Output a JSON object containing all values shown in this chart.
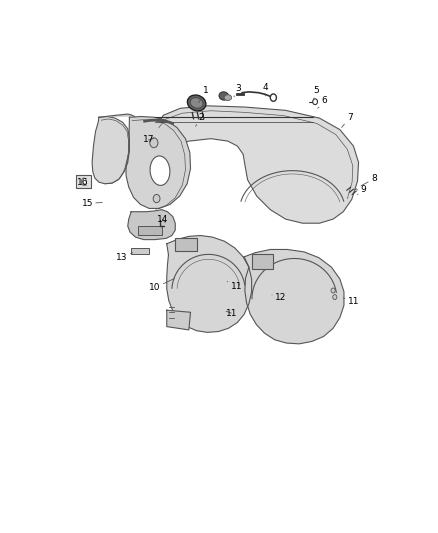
{
  "background_color": "#ffffff",
  "fig_width": 4.38,
  "fig_height": 5.33,
  "dpi": 100,
  "line_color": "#555555",
  "dark_color": "#333333",
  "fill_color": "#d8d8d8",
  "fill_dark": "#b0b0b0",
  "label_fontsize": 6.5,
  "label_positions": {
    "1": [
      0.445,
      0.935,
      0.42,
      0.9
    ],
    "2": [
      0.43,
      0.87,
      0.415,
      0.848
    ],
    "3": [
      0.54,
      0.94,
      0.528,
      0.92
    ],
    "4": [
      0.62,
      0.942,
      0.62,
      0.922
    ],
    "5": [
      0.77,
      0.935,
      0.762,
      0.912
    ],
    "6": [
      0.795,
      0.91,
      0.775,
      0.892
    ],
    "7": [
      0.87,
      0.87,
      0.84,
      0.84
    ],
    "8": [
      0.94,
      0.72,
      0.895,
      0.7
    ],
    "9": [
      0.91,
      0.693,
      0.885,
      0.678
    ],
    "10": [
      0.295,
      0.455,
      0.36,
      0.48
    ],
    "11a": [
      0.535,
      0.458,
      0.508,
      0.47
    ],
    "11b": [
      0.52,
      0.393,
      0.497,
      0.4
    ],
    "11c": [
      0.88,
      0.422,
      0.85,
      0.43
    ],
    "12": [
      0.665,
      0.43,
      0.64,
      0.437
    ],
    "13": [
      0.198,
      0.528,
      0.237,
      0.543
    ],
    "14": [
      0.318,
      0.622,
      0.33,
      0.608
    ],
    "15": [
      0.096,
      0.66,
      0.148,
      0.663
    ],
    "16": [
      0.083,
      0.71,
      0.1,
      0.7
    ],
    "17": [
      0.276,
      0.815,
      0.3,
      0.82
    ]
  }
}
